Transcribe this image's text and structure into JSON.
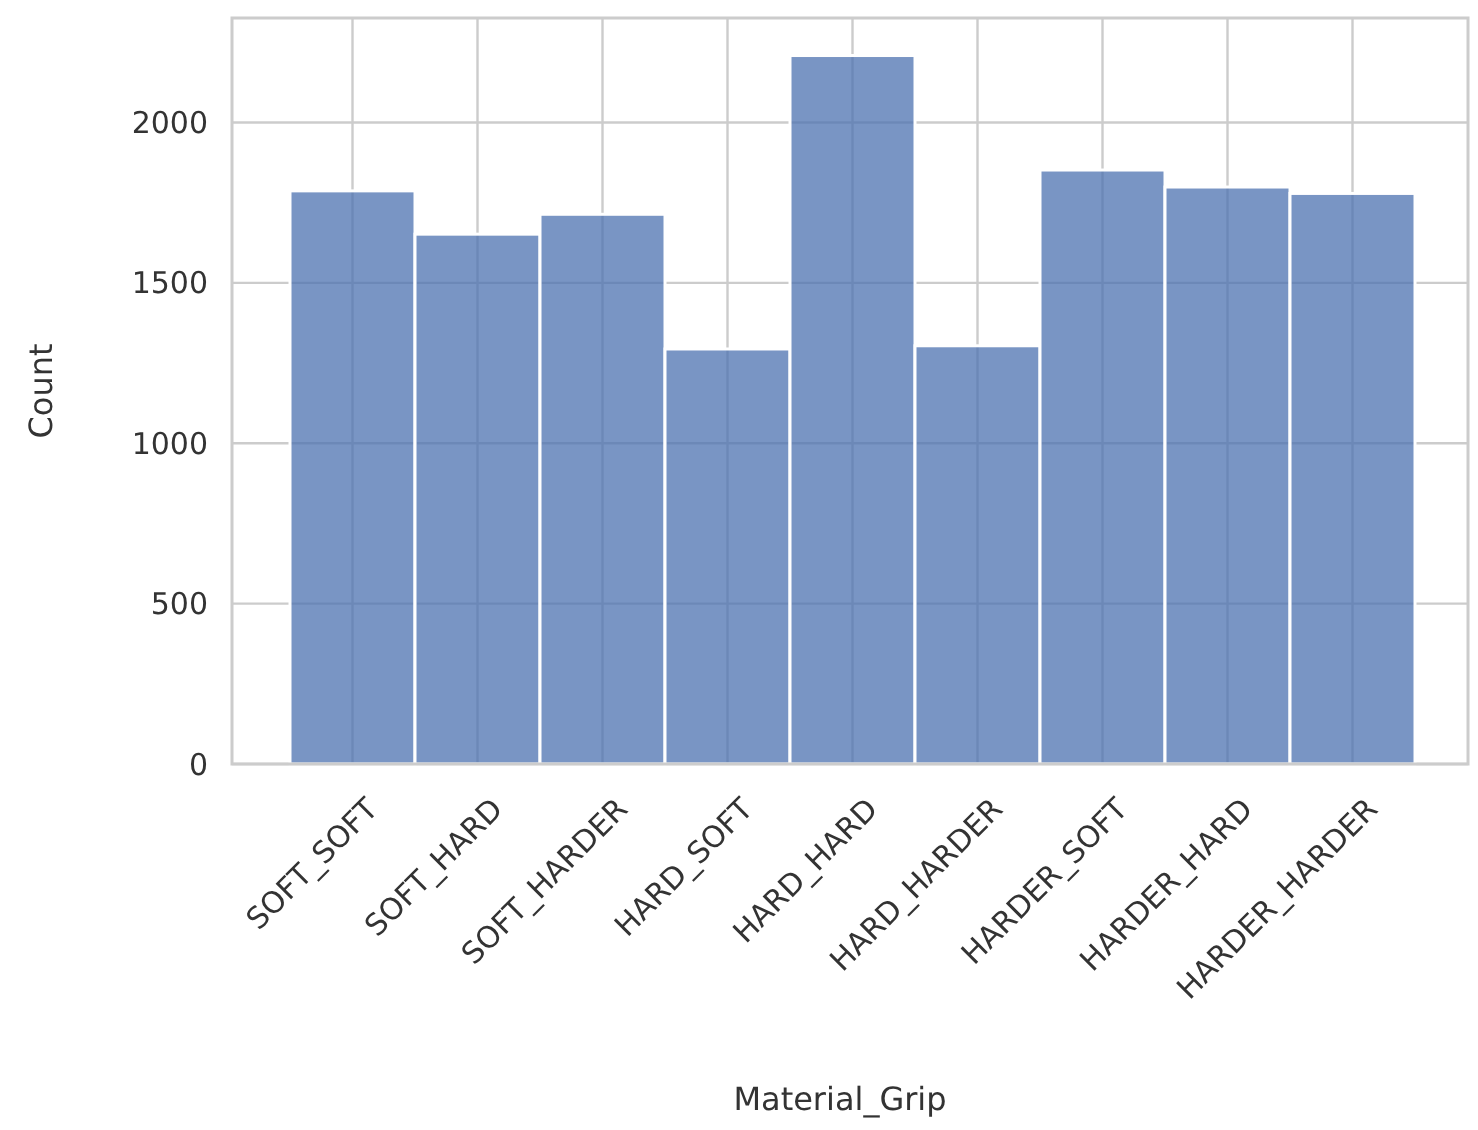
{
  "chart_data": {
    "type": "bar",
    "xlabel": "Material_Grip",
    "ylabel": "Count",
    "categories": [
      "SOFT_SOFT",
      "SOFT_HARD",
      "SOFT_HARDER",
      "HARD_SOFT",
      "HARD_HARD",
      "HARD_HARDER",
      "HARDER_SOFT",
      "HARDER_HARD",
      "HARDER_HARDER"
    ],
    "values": [
      1787,
      1652,
      1714,
      1294,
      2209,
      1304,
      1852,
      1799,
      1779
    ],
    "color": "#4c72b0",
    "ylim": [
      0,
      2326
    ],
    "yticks": [
      0,
      500,
      1000,
      1500,
      2000
    ],
    "grid": true
  }
}
